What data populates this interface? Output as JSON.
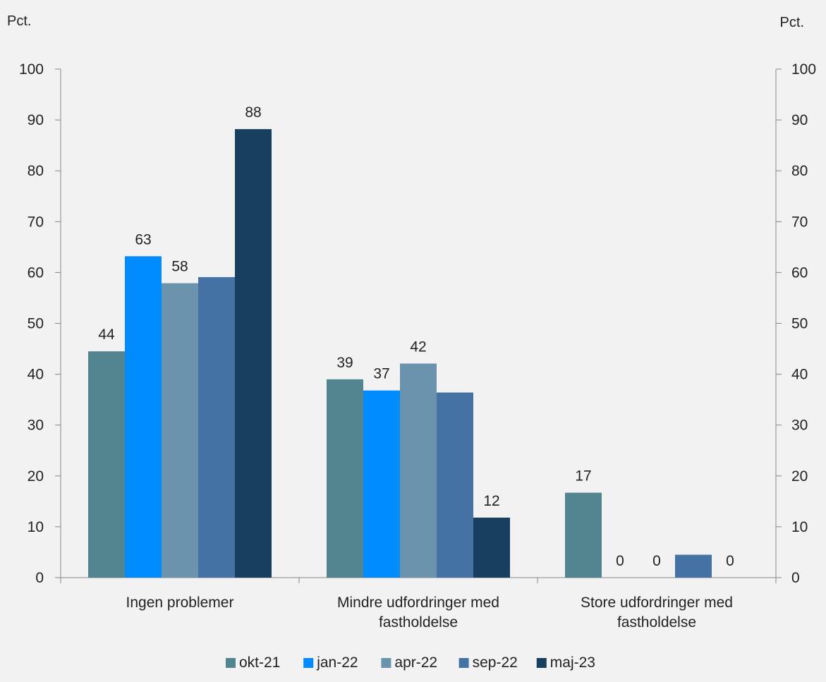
{
  "chart_data": {
    "type": "bar",
    "title": "",
    "ylabel_left": "Pct.",
    "ylabel_right": "Pct.",
    "ylim": [
      0,
      100
    ],
    "yticks": [
      0,
      10,
      20,
      30,
      40,
      50,
      60,
      70,
      80,
      90,
      100
    ],
    "grid": false,
    "legend_position": "bottom",
    "categories": [
      [
        "Ingen problemer"
      ],
      [
        "Mindre udfordringer med",
        "fastholdelse"
      ],
      [
        "Store udfordringer med",
        "fastholdelse"
      ]
    ],
    "series": [
      {
        "name": "okt-21",
        "color": "#528590",
        "values": [
          44.5,
          39,
          16.7
        ],
        "labels": [
          "44",
          "39",
          "17"
        ]
      },
      {
        "name": "jan-22",
        "color": "#008bff",
        "values": [
          63.2,
          36.8,
          0
        ],
        "labels": [
          "63",
          "37",
          "0"
        ]
      },
      {
        "name": "apr-22",
        "color": "#6c93ae",
        "values": [
          57.9,
          42.1,
          0
        ],
        "labels": [
          "58",
          "42",
          "0"
        ]
      },
      {
        "name": "sep-22",
        "color": "#4472a4",
        "values": [
          59.1,
          36.4,
          4.5
        ],
        "labels": [
          "",
          "",
          ""
        ]
      },
      {
        "name": "maj-23",
        "color": "#173f60",
        "values": [
          88.2,
          11.8,
          0
        ],
        "labels": [
          "88",
          "12",
          "0"
        ]
      }
    ]
  }
}
